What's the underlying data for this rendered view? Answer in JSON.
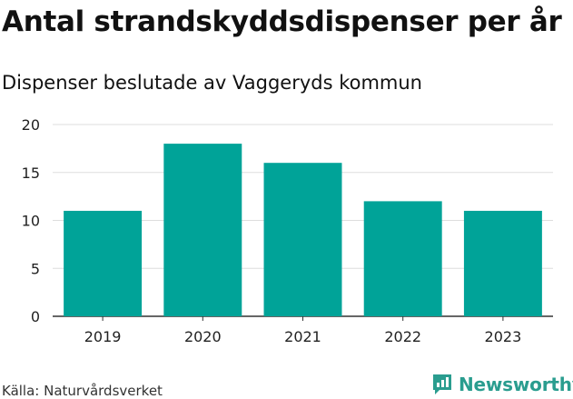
{
  "header": {
    "title": "Antal strandskyddsdispenser per år",
    "subtitle": "Dispenser beslutade av Vaggeryds kommun"
  },
  "footer": {
    "source": "Källa: Naturvårdsverket",
    "brand": "Newsworthy"
  },
  "colors": {
    "bar": "#00a398",
    "grid": "#dddddd",
    "brand": "#2a9d8f"
  },
  "chart_data": {
    "type": "bar",
    "title": "Antal strandskyddsdispenser per år",
    "subtitle": "Dispenser beslutade av Vaggeryds kommun",
    "categories": [
      "2019",
      "2020",
      "2021",
      "2022",
      "2023"
    ],
    "values": [
      11,
      18,
      16,
      12,
      11
    ],
    "xlabel": "",
    "ylabel": "",
    "ylim": [
      0,
      20
    ],
    "yticks": [
      0,
      5,
      10,
      15,
      20
    ],
    "grid": true,
    "legend": "none"
  }
}
